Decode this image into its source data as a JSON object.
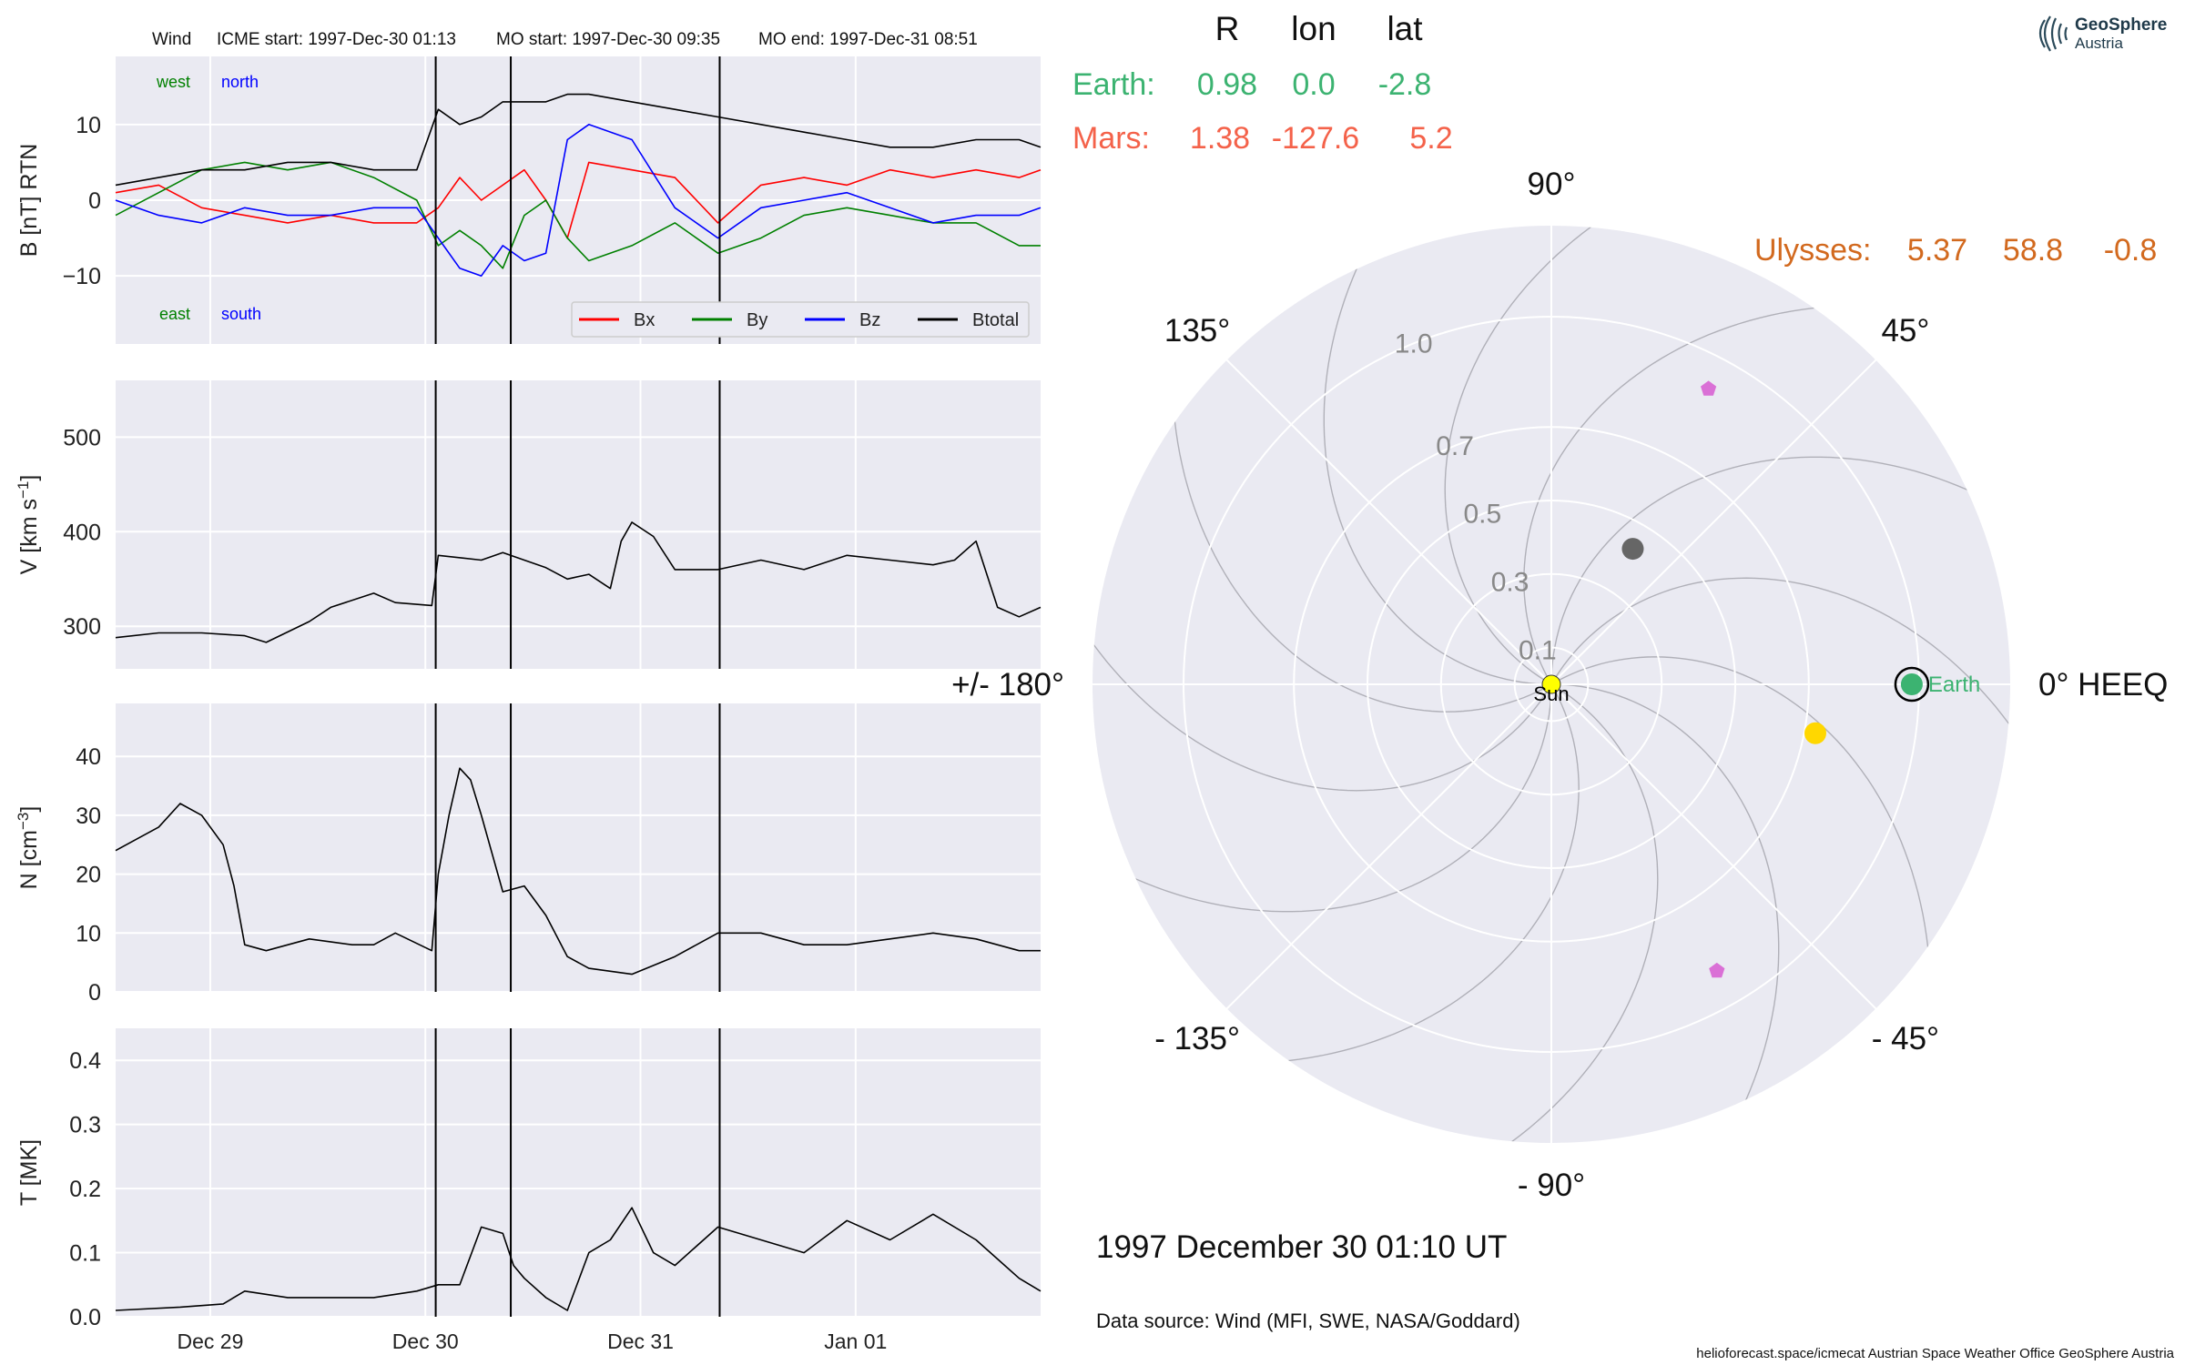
{
  "colors": {
    "panel_bg": "#eaeaf2",
    "grid": "#ffffff",
    "bx": "#ff0000",
    "by": "#008000",
    "bz": "#0000ff",
    "btotal": "#000000",
    "earth": "#3cb371",
    "mars": "#f4624a",
    "ulysses": "#d2691e",
    "sun": "#ffff00",
    "pentagon": "#da70d6",
    "grey_dot": "#666666",
    "yellow_dot": "#ffd700"
  },
  "header": {
    "spacecraft": "Wind",
    "icme_start": "ICME start: 1997-Dec-30 01:13",
    "mo_start": "MO start: 1997-Dec-30 09:35",
    "mo_end": "MO end: 1997-Dec-31 08:51"
  },
  "positions": {
    "cols": [
      "R",
      "lon",
      "lat"
    ],
    "earth": {
      "name": "Earth:",
      "r": "0.98",
      "lon": "0.0",
      "lat": "-2.8"
    },
    "mars": {
      "name": "Mars:",
      "r": "1.38",
      "lon": "-127.6",
      "lat": "5.2"
    },
    "ulysses": {
      "name": "Ulysses:",
      "r": "5.37",
      "lon": "58.8",
      "lat": "-0.8"
    }
  },
  "logo": {
    "line1": "GeoSphere",
    "line2": "Austria"
  },
  "date_label": "1997 December 30  01:10 UT",
  "data_source": "Data source: Wind (MFI, SWE, NASA/Goddard)",
  "footer": "helioforecast.space/icmecat   Austrian Space Weather Office   GeoSphere Austria",
  "chart_data": [
    {
      "type": "line",
      "panel": "magnetic-field",
      "ylabel": "B [nT] RTN",
      "ylim": [
        -19,
        19
      ],
      "yticks": [
        -10,
        0,
        10
      ],
      "ytick_labels": [
        "−10",
        "0",
        "10"
      ],
      "xlim_days": [
        0,
        4.3
      ],
      "xticks": [
        0.44,
        1.44,
        2.44,
        3.44
      ],
      "xtick_labels": [
        "Dec 29",
        "Dec 30",
        "Dec 31",
        "Jan 01"
      ],
      "event_lines": [
        1.488,
        1.837,
        2.808
      ],
      "direction_labels": {
        "west": "west",
        "north": "north",
        "east": "east",
        "south": "south"
      },
      "legend": {
        "placement": "bottom-right",
        "items": [
          "Bx",
          "By",
          "Bz",
          "Btotal"
        ]
      },
      "series": [
        {
          "name": "Bx",
          "x": [
            0,
            0.2,
            0.4,
            0.6,
            0.8,
            1.0,
            1.2,
            1.4,
            1.5,
            1.6,
            1.7,
            1.8,
            1.9,
            2.0,
            2.1,
            2.2,
            2.4,
            2.6,
            2.8,
            3.0,
            3.2,
            3.4,
            3.6,
            3.8,
            4.0,
            4.2,
            4.3
          ],
          "y": [
            1,
            2,
            -1,
            -2,
            -3,
            -2,
            -3,
            -3,
            -1,
            3,
            0,
            2,
            4,
            0,
            -5,
            5,
            4,
            3,
            -3,
            2,
            3,
            2,
            4,
            3,
            4,
            3,
            4
          ]
        },
        {
          "name": "By",
          "x": [
            0,
            0.2,
            0.4,
            0.6,
            0.8,
            1.0,
            1.2,
            1.4,
            1.5,
            1.6,
            1.7,
            1.8,
            1.9,
            2.0,
            2.1,
            2.2,
            2.4,
            2.6,
            2.8,
            3.0,
            3.2,
            3.4,
            3.6,
            3.8,
            4.0,
            4.2,
            4.3
          ],
          "y": [
            -2,
            1,
            4,
            5,
            4,
            5,
            3,
            0,
            -6,
            -4,
            -6,
            -9,
            -2,
            0,
            -5,
            -8,
            -6,
            -3,
            -7,
            -5,
            -2,
            -1,
            -2,
            -3,
            -3,
            -6,
            -6
          ]
        },
        {
          "name": "Bz",
          "x": [
            0,
            0.2,
            0.4,
            0.6,
            0.8,
            1.0,
            1.2,
            1.4,
            1.5,
            1.6,
            1.7,
            1.8,
            1.9,
            2.0,
            2.1,
            2.2,
            2.4,
            2.6,
            2.8,
            3.0,
            3.2,
            3.4,
            3.6,
            3.8,
            4.0,
            4.2,
            4.3
          ],
          "y": [
            0,
            -2,
            -3,
            -1,
            -2,
            -2,
            -1,
            -1,
            -5,
            -9,
            -10,
            -6,
            -8,
            -7,
            8,
            10,
            8,
            -1,
            -5,
            -1,
            0,
            1,
            -1,
            -3,
            -2,
            -2,
            -1
          ]
        },
        {
          "name": "Btotal",
          "x": [
            0,
            0.2,
            0.4,
            0.6,
            0.8,
            1.0,
            1.2,
            1.4,
            1.5,
            1.6,
            1.7,
            1.8,
            1.9,
            2.0,
            2.1,
            2.2,
            2.4,
            2.6,
            2.8,
            3.0,
            3.2,
            3.4,
            3.6,
            3.8,
            4.0,
            4.2,
            4.3
          ],
          "y": [
            2,
            3,
            4,
            4,
            5,
            5,
            4,
            4,
            12,
            10,
            11,
            13,
            13,
            13,
            14,
            14,
            13,
            12,
            11,
            10,
            9,
            8,
            7,
            7,
            8,
            8,
            7
          ]
        }
      ]
    },
    {
      "type": "line",
      "panel": "velocity",
      "ylabel": "V [km s",
      "ylabel_sup": "−1",
      "ylabel_end": "]",
      "ylim": [
        255,
        560
      ],
      "yticks": [
        300,
        400,
        500
      ],
      "xlim_days": [
        0,
        4.3
      ],
      "series": [
        {
          "name": "V",
          "x": [
            0,
            0.2,
            0.4,
            0.6,
            0.7,
            0.9,
            1.0,
            1.2,
            1.3,
            1.47,
            1.5,
            1.7,
            1.8,
            1.9,
            2.0,
            2.1,
            2.2,
            2.3,
            2.35,
            2.4,
            2.5,
            2.6,
            2.8,
            3.0,
            3.2,
            3.4,
            3.6,
            3.8,
            3.9,
            4.0,
            4.1,
            4.2,
            4.3
          ],
          "y": [
            288,
            293,
            293,
            290,
            283,
            305,
            320,
            335,
            325,
            322,
            375,
            370,
            378,
            370,
            362,
            350,
            355,
            340,
            390,
            410,
            395,
            360,
            360,
            370,
            360,
            375,
            370,
            365,
            370,
            390,
            320,
            310,
            320
          ]
        }
      ]
    },
    {
      "type": "line",
      "panel": "density",
      "ylabel": "N [cm",
      "ylabel_sup": "−3",
      "ylabel_end": "]",
      "ylim": [
        0,
        49
      ],
      "yticks": [
        0,
        10,
        20,
        30,
        40
      ],
      "xlim_days": [
        0,
        4.3
      ],
      "series": [
        {
          "name": "N",
          "x": [
            0,
            0.1,
            0.2,
            0.3,
            0.4,
            0.5,
            0.55,
            0.6,
            0.7,
            0.9,
            1.1,
            1.2,
            1.3,
            1.47,
            1.5,
            1.55,
            1.6,
            1.65,
            1.7,
            1.8,
            1.9,
            2.0,
            2.1,
            2.2,
            2.4,
            2.6,
            2.8,
            3.0,
            3.2,
            3.4,
            3.6,
            3.8,
            4.0,
            4.2,
            4.3
          ],
          "y": [
            24,
            26,
            28,
            32,
            30,
            25,
            18,
            8,
            7,
            9,
            8,
            8,
            10,
            7,
            20,
            30,
            38,
            36,
            30,
            17,
            18,
            13,
            6,
            4,
            3,
            6,
            10,
            10,
            8,
            8,
            9,
            10,
            9,
            7,
            7
          ]
        }
      ]
    },
    {
      "type": "line",
      "panel": "temperature",
      "ylabel": "T [MK]",
      "ylim": [
        0,
        0.45
      ],
      "yticks": [
        0.0,
        0.1,
        0.2,
        0.3,
        0.4
      ],
      "ytick_labels": [
        "0.0",
        "0.1",
        "0.2",
        "0.3",
        "0.4"
      ],
      "xlim_days": [
        0,
        4.3
      ],
      "series": [
        {
          "name": "T",
          "x": [
            0,
            0.3,
            0.5,
            0.6,
            0.8,
            1.0,
            1.2,
            1.4,
            1.5,
            1.6,
            1.7,
            1.8,
            1.85,
            1.9,
            2.0,
            2.1,
            2.2,
            2.3,
            2.4,
            2.5,
            2.6,
            2.8,
            3.0,
            3.2,
            3.4,
            3.6,
            3.8,
            4.0,
            4.2,
            4.3
          ],
          "y": [
            0.01,
            0.015,
            0.02,
            0.04,
            0.03,
            0.03,
            0.03,
            0.04,
            0.05,
            0.05,
            0.14,
            0.13,
            0.08,
            0.06,
            0.03,
            0.01,
            0.1,
            0.12,
            0.17,
            0.1,
            0.08,
            0.14,
            0.12,
            0.1,
            0.15,
            0.12,
            0.16,
            0.12,
            0.06,
            0.04
          ]
        }
      ]
    },
    {
      "type": "scatter",
      "panel": "polar-position",
      "r_ticks": [
        0.1,
        0.3,
        0.5,
        0.7,
        1.0
      ],
      "r_tick_labels": [
        "0.1",
        "0.3",
        "0.5",
        "0.7",
        "1.0"
      ],
      "angle_labels": [
        {
          "deg": 0,
          "text": "0° HEEQ"
        },
        {
          "deg": 45,
          "text": "45°"
        },
        {
          "deg": 90,
          "text": "90°"
        },
        {
          "deg": 135,
          "text": "135°"
        },
        {
          "deg": 180,
          "text": "+/- 180°"
        },
        {
          "deg": -135,
          "text": "- 135°"
        },
        {
          "deg": -90,
          "text": "- 90°"
        },
        {
          "deg": -45,
          "text": "- 45°"
        }
      ],
      "objects": [
        {
          "name": "Sun",
          "label": "Sun",
          "r": 0.0,
          "lon": 0
        },
        {
          "name": "Earth",
          "label": "Earth",
          "r": 0.98,
          "lon": 0.0
        },
        {
          "name": "grey-body",
          "r": 0.43,
          "lon": 59
        },
        {
          "name": "yellow-body",
          "r": 0.73,
          "lon": -10.5
        },
        {
          "name": "pentagon-north",
          "r": 0.91,
          "lon": 62
        },
        {
          "name": "pentagon-south",
          "r": 0.9,
          "lon": -60
        }
      ]
    }
  ]
}
